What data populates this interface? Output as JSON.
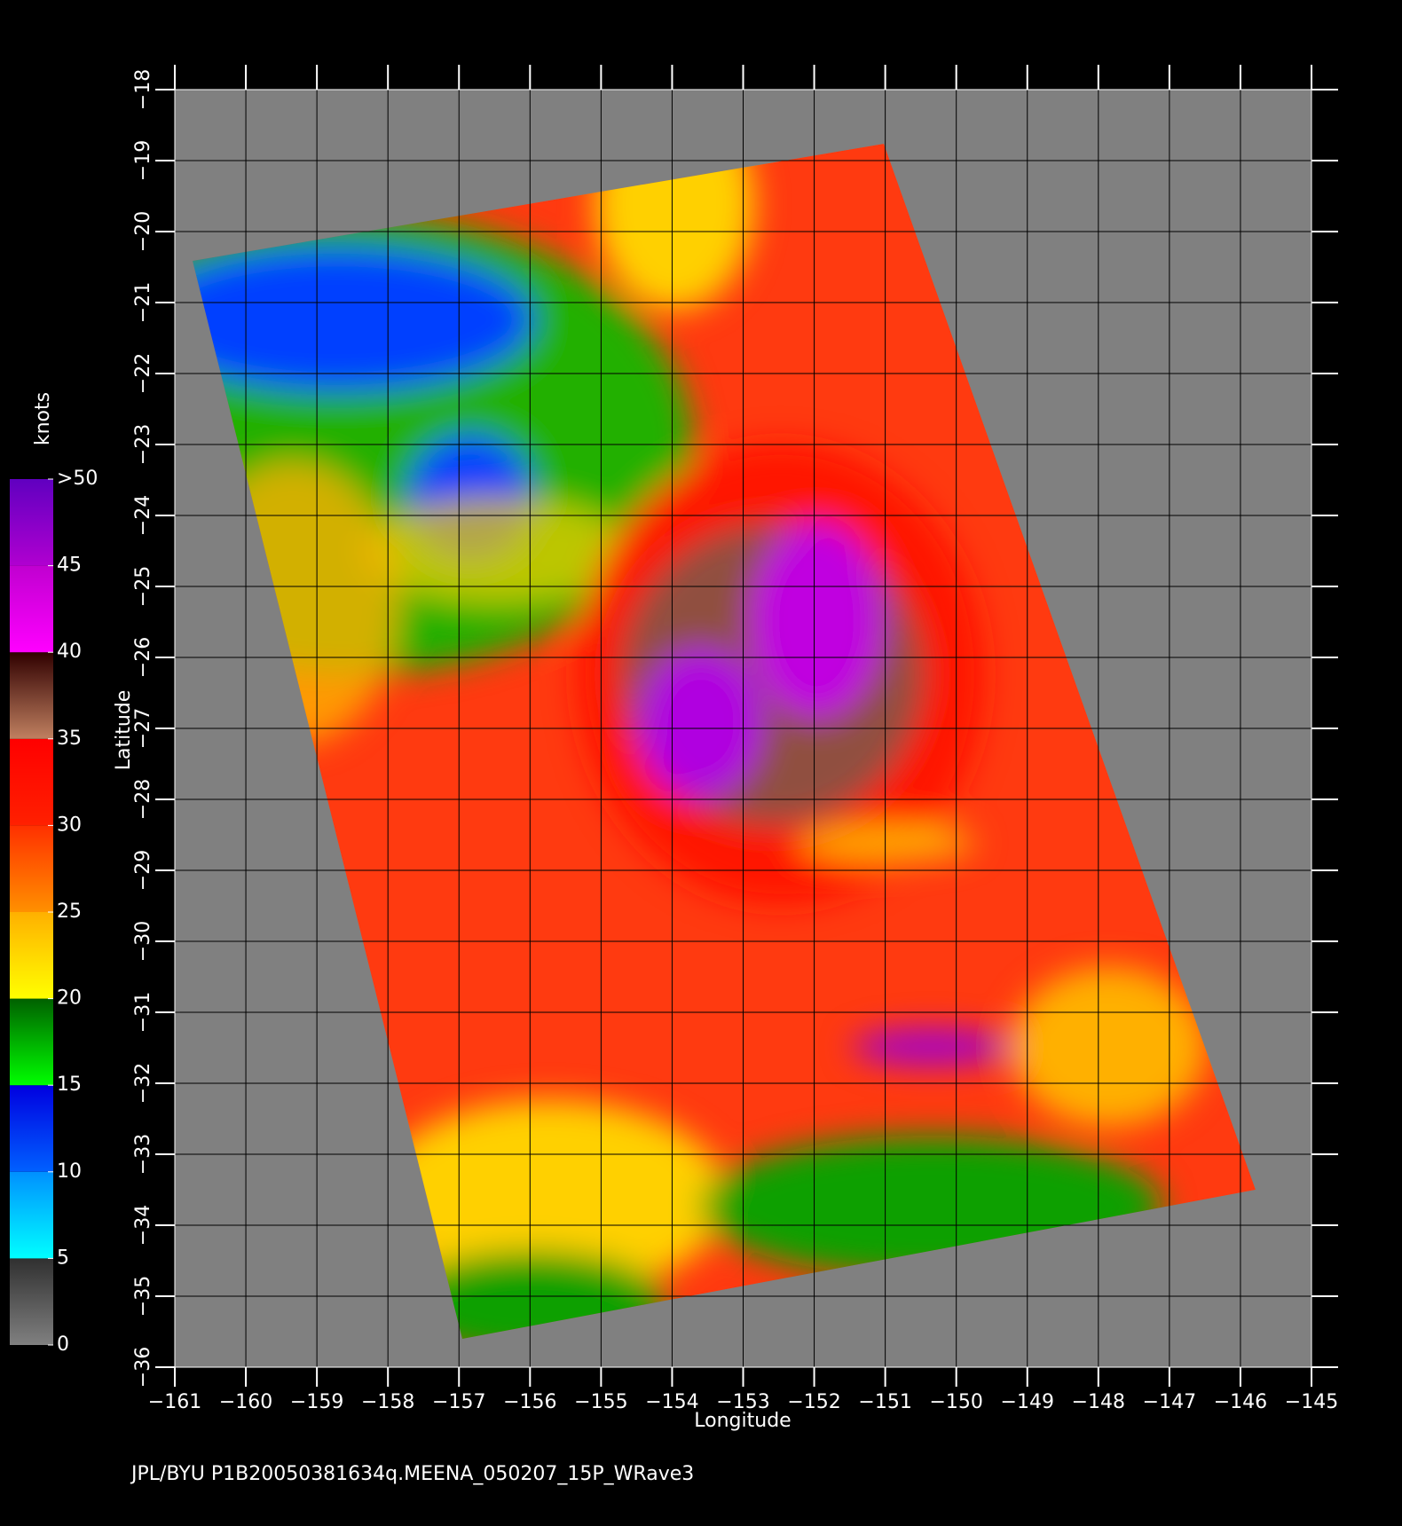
{
  "chart_data": {
    "type": "map",
    "title": "JPL/BYU  P1B20050381634q.MEENA_050207_15P_WRave3",
    "xlabel": "Longitude",
    "ylabel": "Latitude",
    "xlim": [
      -161,
      -145
    ],
    "ylim": [
      -36,
      -18
    ],
    "xticks": [
      {
        "value": -161,
        "label": "−161"
      },
      {
        "value": -160,
        "label": "−160"
      },
      {
        "value": -159,
        "label": "−159"
      },
      {
        "value": -158,
        "label": "−158"
      },
      {
        "value": -157,
        "label": "−157"
      },
      {
        "value": -156,
        "label": "−156"
      },
      {
        "value": -155,
        "label": "−155"
      },
      {
        "value": -154,
        "label": "−154"
      },
      {
        "value": -153,
        "label": "−153"
      },
      {
        "value": -152,
        "label": "−152"
      },
      {
        "value": -151,
        "label": "−151"
      },
      {
        "value": -150,
        "label": "−150"
      },
      {
        "value": -149,
        "label": "−149"
      },
      {
        "value": -148,
        "label": "−148"
      },
      {
        "value": -147,
        "label": "−147"
      },
      {
        "value": -146,
        "label": "−146"
      },
      {
        "value": -145,
        "label": "−145"
      }
    ],
    "yticks": [
      {
        "value": -36,
        "label": "−36"
      },
      {
        "value": -35,
        "label": "−35"
      },
      {
        "value": -34,
        "label": "−34"
      },
      {
        "value": -33,
        "label": "−33"
      },
      {
        "value": -32,
        "label": "−32"
      },
      {
        "value": -31,
        "label": "−31"
      },
      {
        "value": -30,
        "label": "−30"
      },
      {
        "value": -29,
        "label": "−29"
      },
      {
        "value": -28,
        "label": "−28"
      },
      {
        "value": -27,
        "label": "−27"
      },
      {
        "value": -26,
        "label": "−26"
      },
      {
        "value": -25,
        "label": "−25"
      },
      {
        "value": -24,
        "label": "−24"
      },
      {
        "value": -23,
        "label": "−23"
      },
      {
        "value": -22,
        "label": "−22"
      },
      {
        "value": -21,
        "label": "−21"
      },
      {
        "value": -20,
        "label": "−20"
      },
      {
        "value": -19,
        "label": "−19"
      },
      {
        "value": -18,
        "label": "−18"
      }
    ],
    "grid": true,
    "colorbar": {
      "label": "knots",
      "ticks": [
        0,
        5,
        10,
        15,
        20,
        25,
        30,
        35,
        40,
        45,
        {
          "value": 50,
          "label": ">50"
        }
      ],
      "colors": [
        [
          "#808080",
          "#303030"
        ],
        [
          "#00ffff",
          "#0090ff"
        ],
        [
          "#0060ff",
          "#0000e0"
        ],
        [
          "#00ff00",
          "#006000"
        ],
        [
          "#ffff00",
          "#ffb000"
        ],
        [
          "#ff9000",
          "#ff3000"
        ],
        [
          "#ff2000",
          "#ff0000"
        ],
        [
          "#c08060",
          "#300000"
        ],
        [
          "#ff00ff",
          "#c000d0"
        ],
        [
          "#b000d0",
          "#6000c0"
        ]
      ]
    }
  }
}
